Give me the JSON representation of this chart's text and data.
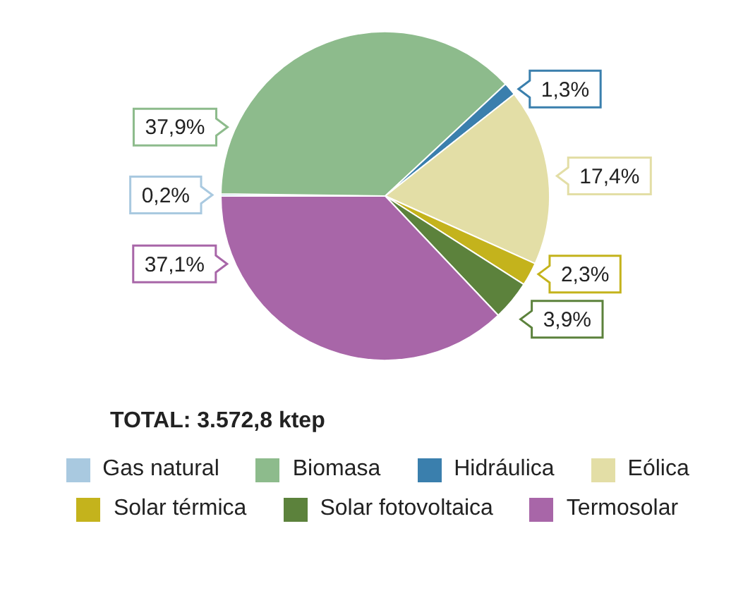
{
  "chart_data": {
    "type": "pie",
    "categories": [
      "Gas natural",
      "Biomasa",
      "Hidráulica",
      "Eólica",
      "Solar térmica",
      "Solar fotovoltaica",
      "Termosolar"
    ],
    "values": [
      0.2,
      37.9,
      1.3,
      17.4,
      2.3,
      3.9,
      37.1
    ],
    "value_labels": [
      "0,2%",
      "37,9%",
      "1,3%",
      "17,4%",
      "2,3%",
      "3,9%",
      "37,1%"
    ],
    "colors": [
      "#a9c9e0",
      "#8dbb8c",
      "#3a7fad",
      "#e3dea6",
      "#c4b31c",
      "#5c823c",
      "#a866a8"
    ],
    "annotations": [
      "TOTAL: 3.572,8 ktep"
    ],
    "legend": "bottom"
  }
}
